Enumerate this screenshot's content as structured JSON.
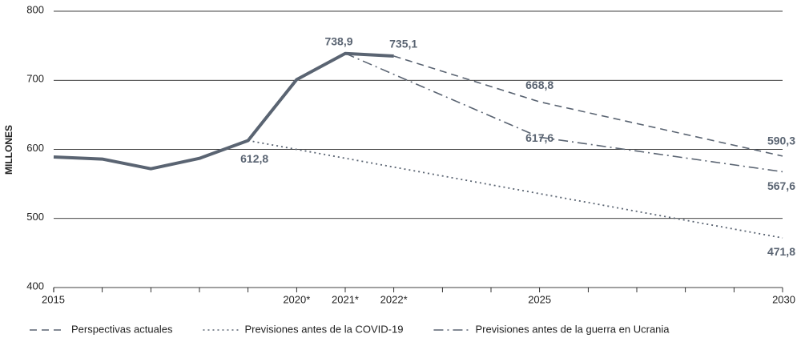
{
  "chart_data": {
    "type": "line",
    "y_label": "MILLONES",
    "xlim": [
      2015,
      2030
    ],
    "ylim": [
      400,
      800
    ],
    "yticks": [
      400,
      500,
      600,
      700,
      800
    ],
    "xticks": [
      2015,
      {
        "value": 2016,
        "label": null
      },
      {
        "value": 2017,
        "label": null
      },
      {
        "value": 2018,
        "label": null
      },
      {
        "value": 2019,
        "label": null
      },
      {
        "value": 2020,
        "label": "2020*"
      },
      {
        "value": 2021,
        "label": "2021*"
      },
      {
        "value": 2022,
        "label": "2022*"
      },
      {
        "value": 2023,
        "label": null
      },
      {
        "value": 2024,
        "label": null
      },
      2025,
      {
        "value": 2026,
        "label": null
      },
      {
        "value": 2027,
        "label": null
      },
      {
        "value": 2028,
        "label": null
      },
      {
        "value": 2029,
        "label": null
      },
      2030
    ],
    "grid": true,
    "color": "#5a6472",
    "series": [
      {
        "style": "solid",
        "x": [
          2015,
          2016,
          2017,
          2018,
          2019,
          2020,
          2021,
          2022
        ],
        "values": [
          589,
          586,
          572,
          587,
          612.8,
          701,
          738.9,
          735.1
        ],
        "value_labels": [
          null,
          null,
          null,
          null,
          "612,8",
          null,
          "738,9",
          "735,1"
        ]
      },
      {
        "name": "Perspectivas actuales",
        "style": "dashed",
        "x": [
          2022,
          2025,
          2030
        ],
        "values": [
          735.1,
          668.8,
          590.3
        ],
        "value_labels": [
          null,
          "668,8",
          "590,3"
        ]
      },
      {
        "name": "Previsiones antes de la COVID-19",
        "style": "dotted",
        "x": [
          2019,
          2030
        ],
        "values": [
          612.8,
          471.8
        ],
        "value_labels": [
          null,
          "471,8"
        ]
      },
      {
        "name": "Previsiones antes de la guerra en Ucrania",
        "style": "dashdot",
        "x": [
          2021,
          2025,
          2030
        ],
        "values": [
          738.9,
          617.6,
          567.6
        ],
        "value_labels": [
          null,
          "617,6",
          "567,6"
        ]
      }
    ]
  }
}
